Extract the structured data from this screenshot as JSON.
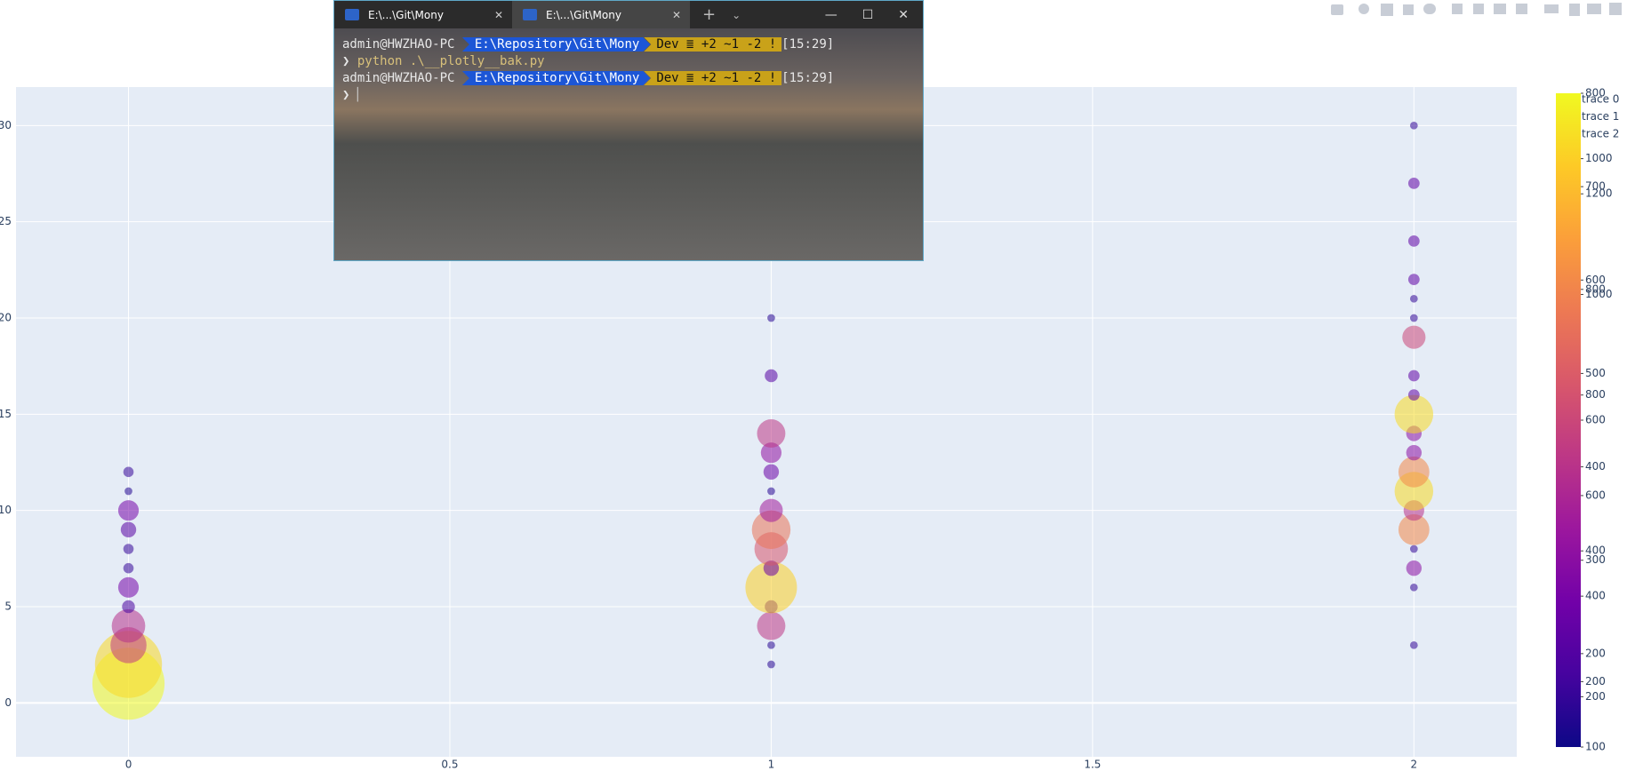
{
  "terminal": {
    "tabs": [
      "E:\\...\\Git\\Mony",
      "E:\\...\\Git\\Mony"
    ],
    "user": "admin@HWZHAO-PC",
    "path": "E:\\Repository\\Git\\Mony",
    "git": "Dev ≣ +2 ~1 -2 !",
    "time": "[15:29]",
    "prompt_symbol": "❯",
    "command": "python .\\__plotly__bak.py"
  },
  "chart_data": {
    "type": "scatter",
    "xlim": [
      -0.175,
      2.16
    ],
    "ylim": [
      -2.8,
      32
    ],
    "xticks": [
      0,
      0.5,
      1,
      1.5,
      2
    ],
    "yticks": [
      0,
      5,
      10,
      15,
      20,
      25,
      30
    ],
    "grid": true,
    "colorscale": [
      "#0d0887",
      "#46039f",
      "#7201a8",
      "#9c179e",
      "#bd3786",
      "#d8576b",
      "#ed7953",
      "#fb9f3a",
      "#fdca26",
      "#f0f921"
    ],
    "series": [
      {
        "name": "trace 0",
        "clim": [
          100,
          1400
        ],
        "cticks": [
          200,
          400,
          600,
          800,
          1000,
          1200
        ],
        "x": [
          0,
          0,
          0,
          0,
          0,
          0,
          0,
          0,
          0,
          0,
          0,
          0
        ],
        "y": [
          1,
          2,
          3,
          4,
          5,
          6,
          7,
          8,
          9,
          10,
          11,
          12
        ],
        "size": [
          1400,
          1300,
          700,
          650,
          250,
          400,
          200,
          200,
          300,
          400,
          150,
          200
        ]
      },
      {
        "name": "trace 1",
        "clim": [
          100,
          1100
        ],
        "cticks": [
          200,
          400,
          600,
          800,
          1000
        ],
        "x": [
          1,
          1,
          1,
          1,
          1,
          1,
          1,
          1,
          1,
          1,
          1,
          1,
          1,
          1,
          1
        ],
        "y": [
          2,
          3,
          4,
          5,
          6,
          7,
          8,
          9,
          10,
          11,
          12,
          13,
          14,
          17,
          20
        ],
        "size": [
          150,
          150,
          550,
          250,
          1000,
          300,
          650,
          750,
          450,
          150,
          300,
          400,
          550,
          250,
          150
        ]
      },
      {
        "name": "trace 2",
        "clim": [
          100,
          800
        ],
        "cticks": [
          100,
          200,
          300,
          400,
          500,
          600,
          700,
          800
        ],
        "x": [
          2,
          2,
          2,
          2,
          2,
          2,
          2,
          2,
          2,
          2,
          2,
          2,
          2,
          2,
          2,
          2,
          2,
          2,
          2,
          2
        ],
        "y": [
          3,
          6,
          7,
          8,
          9,
          10,
          11,
          12,
          13,
          14,
          15,
          16,
          17,
          19,
          20,
          21,
          22,
          24,
          27,
          30
        ],
        "size": [
          150,
          150,
          300,
          150,
          600,
          400,
          750,
          600,
          300,
          300,
          750,
          220,
          220,
          450,
          150,
          150,
          220,
          220,
          220,
          150
        ]
      }
    ]
  }
}
